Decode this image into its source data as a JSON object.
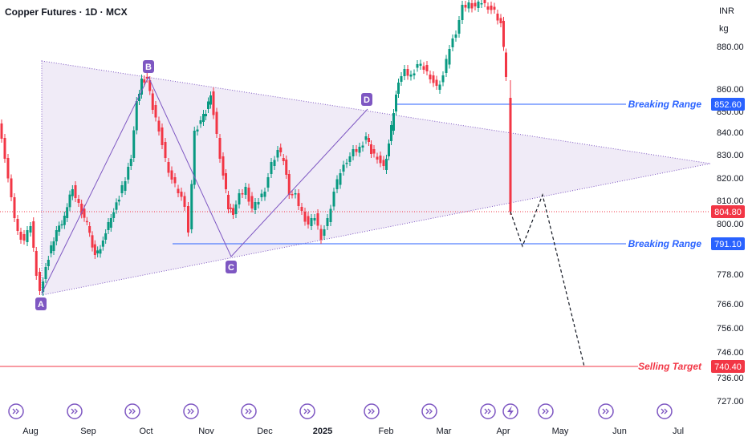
{
  "header": {
    "title": "Copper Futures · 1D · MCX"
  },
  "axis": {
    "currency": "INR",
    "unit": "kg"
  },
  "chart_data": {
    "type": "candlestick",
    "title": "Copper Futures · 1D · MCX",
    "y_ticks": [
      880.0,
      860.0,
      850.0,
      840.0,
      830.0,
      820.0,
      810.0,
      800.0,
      778.0,
      766.0,
      756.0,
      746.0,
      736.0,
      727.0
    ],
    "x_ticks": [
      "Aug",
      "Sep",
      "Oct",
      "Nov",
      "Dec",
      "2025",
      "Feb",
      "Mar",
      "Apr",
      "May",
      "Jun",
      "Jul"
    ],
    "price_levels": [
      {
        "label": "Breaking Range",
        "value": "852.60",
        "color": "#2962ff"
      },
      {
        "label": "Breaking Range",
        "value": "791.10",
        "color": "#2962ff"
      },
      {
        "label": "",
        "value": "804.80",
        "color": "#f23645"
      },
      {
        "label": "Selling Target",
        "value": "740.40",
        "color": "#f23645"
      }
    ],
    "pattern_points": [
      "A",
      "B",
      "C",
      "D"
    ],
    "colors": {
      "up": "#089981",
      "down": "#f23645",
      "pattern": "#7e57c2",
      "triangle_fill": "#ede7f6"
    },
    "grid": false
  }
}
